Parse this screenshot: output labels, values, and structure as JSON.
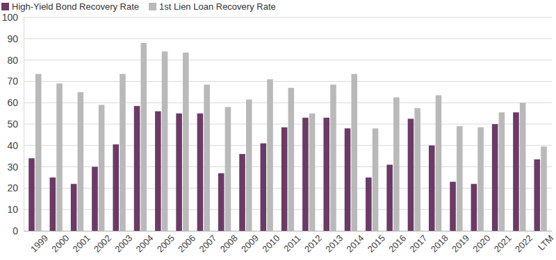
{
  "chart_data": {
    "type": "bar",
    "categories": [
      "1999",
      "2000",
      "2001",
      "2002",
      "2003",
      "2004",
      "2005",
      "2006",
      "2007",
      "2008",
      "2009",
      "2010",
      "2011",
      "2012",
      "2013",
      "2014",
      "2015",
      "2016",
      "2017",
      "2018",
      "2019",
      "2020",
      "2021",
      "2022",
      "LTM"
    ],
    "series": [
      {
        "name": "High-Yield Bond Recovery Rate",
        "color": "#6b3a66",
        "values": [
          34,
          25,
          22,
          30,
          40.5,
          58.5,
          56,
          55,
          55,
          27,
          36,
          41,
          48.5,
          53,
          53,
          48,
          25,
          31,
          52.5,
          40,
          23,
          22,
          50,
          55.5,
          33.5
        ]
      },
      {
        "name": "1st Lien Loan Recovery Rate",
        "color": "#b9b9b9",
        "values": [
          73.5,
          69,
          65,
          59,
          73.5,
          88,
          84,
          83.5,
          68.5,
          58,
          61.5,
          71,
          67,
          55,
          68.5,
          73.5,
          48,
          62.5,
          57.5,
          63.5,
          49,
          48.5,
          55.5,
          60,
          39.5
        ]
      }
    ],
    "ylim": [
      0,
      100
    ],
    "yticks": [
      0,
      10,
      20,
      30,
      40,
      50,
      60,
      70,
      80,
      90,
      100
    ],
    "grid": true,
    "legend": "top-left"
  }
}
